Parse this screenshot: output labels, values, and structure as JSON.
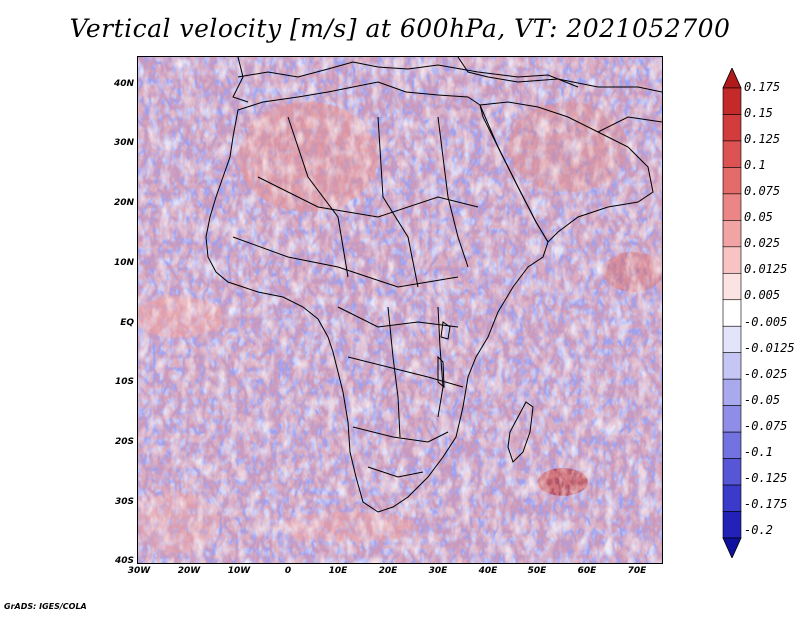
{
  "title": "Vertical velocity [m/s] at 600hPa, VT: 2021052700",
  "footer": "GrADS: IGES/COLA",
  "map": {
    "lat_labels": [
      "40N",
      "30N",
      "20N",
      "10N",
      "EQ",
      "10S",
      "20S",
      "30S",
      "40S"
    ],
    "lon_labels": [
      "30W",
      "20W",
      "10W",
      "0",
      "10E",
      "20E",
      "30E",
      "40E",
      "50E",
      "60E",
      "70E"
    ],
    "lat_range": [
      -40,
      45
    ],
    "lon_range": [
      -30,
      75
    ]
  },
  "colorbar": {
    "levels": [
      "0.175",
      "0.15",
      "0.125",
      "0.1",
      "0.075",
      "0.05",
      "0.025",
      "0.0125",
      "0.005",
      "-0.005",
      "-0.0125",
      "-0.025",
      "-0.05",
      "-0.075",
      "-0.1",
      "-0.125",
      "-0.175",
      "-0.2"
    ],
    "colors": [
      "#b01a1a",
      "#c42a2a",
      "#d23c3c",
      "#dd5252",
      "#e56a6a",
      "#ec8585",
      "#f2a3a3",
      "#f7c3c3",
      "#fbe3e3",
      "#ffffff",
      "#e3e3fa",
      "#c6c6f4",
      "#a9a9ee",
      "#8e8ee8",
      "#7272e0",
      "#5656d6",
      "#3a3acb",
      "#2222b8",
      "#1010a0"
    ]
  }
}
